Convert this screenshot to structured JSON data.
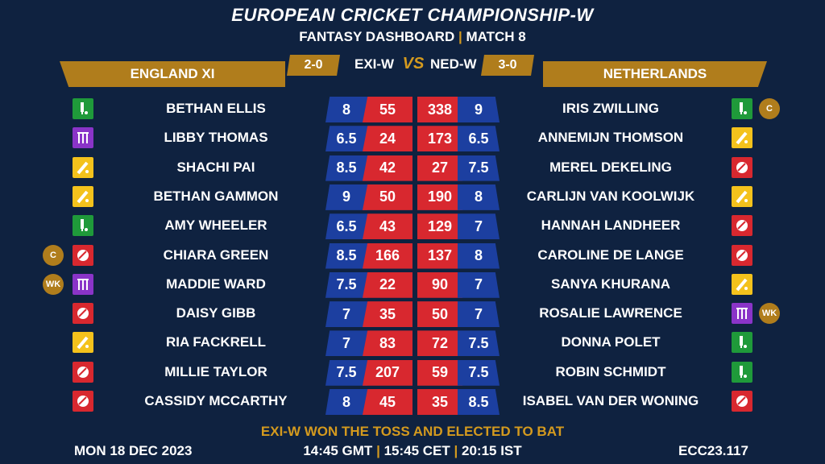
{
  "header": {
    "title": "EUROPEAN CRICKET CHAMPIONSHIP-W",
    "subtitle_left": "FANTASY DASHBOARD",
    "subtitle_sep": "|",
    "subtitle_right": "MATCH 8"
  },
  "teams": {
    "left": {
      "name": "ENGLAND XI",
      "code": "EXI-W",
      "record": "2-0"
    },
    "right": {
      "name": "NETHERLANDS",
      "code": "NED-W",
      "record": "3-0"
    },
    "vs": "VS"
  },
  "colors": {
    "background": "#0f2240",
    "gold": "#b07d1c",
    "credit_blue": "#1c3fa0",
    "points_red": "#d8282f",
    "batter": "#1f9a3a",
    "bowler": "#d8282f",
    "allrounder": "#f4c21c",
    "wicketkeeper": "#8a34c8"
  },
  "players": [
    {
      "left": {
        "name": "BETHAN ELLIS",
        "role": "batter-icon",
        "badge": "",
        "credits": "8",
        "points": "55"
      },
      "right": {
        "name": "IRIS ZWILLING",
        "role": "batter-icon",
        "badge": "C",
        "credits": "9",
        "points": "338"
      }
    },
    {
      "left": {
        "name": "LIBBY THOMAS",
        "role": "wicketkeeper-icon",
        "badge": "",
        "credits": "6.5",
        "points": "24"
      },
      "right": {
        "name": "ANNEMIJN THOMSON",
        "role": "allrounder-icon",
        "badge": "",
        "credits": "6.5",
        "points": "173"
      }
    },
    {
      "left": {
        "name": "SHACHI PAI",
        "role": "allrounder-icon",
        "badge": "",
        "credits": "8.5",
        "points": "42"
      },
      "right": {
        "name": "MEREL DEKELING",
        "role": "bowler-icon",
        "badge": "",
        "credits": "7.5",
        "points": "27"
      }
    },
    {
      "left": {
        "name": "BETHAN GAMMON",
        "role": "allrounder-icon",
        "badge": "",
        "credits": "9",
        "points": "50"
      },
      "right": {
        "name": "CARLIJN VAN KOOLWIJK",
        "role": "allrounder-icon",
        "badge": "",
        "credits": "8",
        "points": "190"
      }
    },
    {
      "left": {
        "name": "AMY WHEELER",
        "role": "batter-icon",
        "badge": "",
        "credits": "6.5",
        "points": "43"
      },
      "right": {
        "name": "HANNAH LANDHEER",
        "role": "bowler-icon",
        "badge": "",
        "credits": "7",
        "points": "129"
      }
    },
    {
      "left": {
        "name": "CHIARA GREEN",
        "role": "bowler-icon",
        "badge": "C",
        "credits": "8.5",
        "points": "166"
      },
      "right": {
        "name": "CAROLINE DE LANGE",
        "role": "bowler-icon",
        "badge": "",
        "credits": "8",
        "points": "137"
      }
    },
    {
      "left": {
        "name": "MADDIE WARD",
        "role": "wicketkeeper-icon",
        "badge": "WK",
        "credits": "7.5",
        "points": "22"
      },
      "right": {
        "name": "SANYA KHURANA",
        "role": "allrounder-icon",
        "badge": "",
        "credits": "7",
        "points": "90"
      }
    },
    {
      "left": {
        "name": "DAISY GIBB",
        "role": "bowler-icon",
        "badge": "",
        "credits": "7",
        "points": "35"
      },
      "right": {
        "name": "ROSALIE LAWRENCE",
        "role": "wicketkeeper-icon",
        "badge": "WK",
        "credits": "7",
        "points": "50"
      }
    },
    {
      "left": {
        "name": "RIA FACKRELL",
        "role": "allrounder-icon",
        "badge": "",
        "credits": "7",
        "points": "83"
      },
      "right": {
        "name": "DONNA POLET",
        "role": "batter-icon",
        "badge": "",
        "credits": "7.5",
        "points": "72"
      }
    },
    {
      "left": {
        "name": "MILLIE TAYLOR",
        "role": "bowler-icon",
        "badge": "",
        "credits": "7.5",
        "points": "207"
      },
      "right": {
        "name": "ROBIN SCHMIDT",
        "role": "batter-icon",
        "badge": "",
        "credits": "7.5",
        "points": "59"
      }
    },
    {
      "left": {
        "name": "CASSIDY MCCARTHY",
        "role": "bowler-icon",
        "badge": "",
        "credits": "8",
        "points": "45"
      },
      "right": {
        "name": "ISABEL VAN DER WONING",
        "role": "bowler-icon",
        "badge": "",
        "credits": "8.5",
        "points": "35"
      }
    }
  ],
  "footer": {
    "toss": "EXI-W WON THE TOSS AND ELECTED TO BAT",
    "date": "MON 18 DEC 2023",
    "time_gmt": "14:45 GMT",
    "time_cet": "15:45 CET",
    "time_ist": "20:15 IST",
    "sep": "|",
    "code": "ECC23.117"
  }
}
